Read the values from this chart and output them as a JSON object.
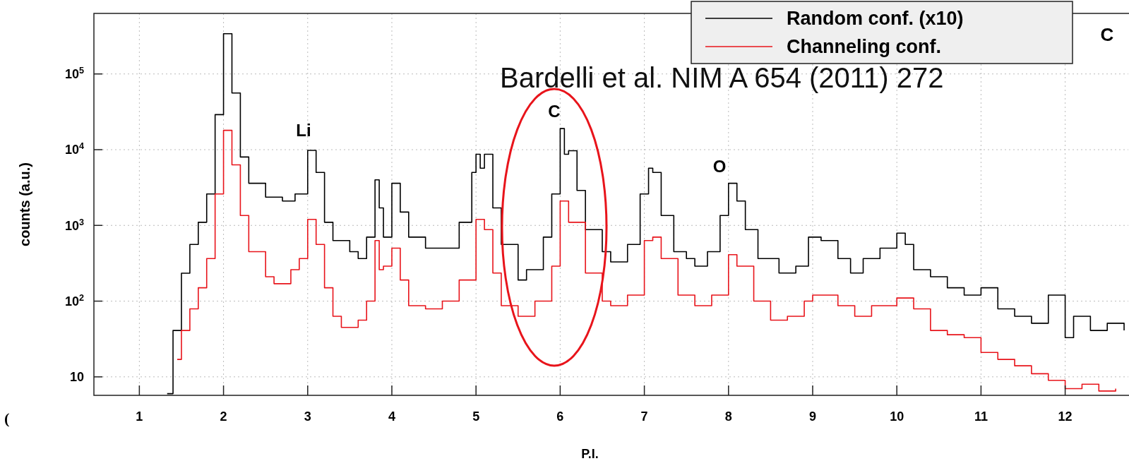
{
  "chart_data": {
    "type": "step",
    "xlabel": "P.I.",
    "ylabel": "counts (a.u.)",
    "log": "y",
    "grid": true,
    "legend": "top right",
    "line_style": "solid",
    "marker": "none",
    "xlim": [
      0.46,
      12.75
    ],
    "xticks": [
      1,
      2,
      3,
      4,
      5,
      6,
      7,
      8,
      9,
      10,
      11,
      12
    ],
    "ylim": [
      5.7,
      630000
    ],
    "yticks": [
      {
        "value": 10,
        "label": "10"
      },
      {
        "value": 100,
        "label": "10$^{2}$"
      },
      {
        "value": 1000,
        "label": "10$^{3}$"
      },
      {
        "value": 10000,
        "label": "10$^{4}$"
      },
      {
        "value": 100000,
        "label": "10$^{5}$"
      }
    ],
    "series": [
      {
        "name": "Random conf. (x10)",
        "color": "#000000",
        "x": [
          1.33,
          1.4,
          1.5,
          1.6,
          1.7,
          1.8,
          1.9,
          2.0,
          2.1,
          2.2,
          2.3,
          2.5,
          2.7,
          2.85,
          3.0,
          3.1,
          3.2,
          3.3,
          3.5,
          3.6,
          3.7,
          3.8,
          3.85,
          3.9,
          4.0,
          4.1,
          4.2,
          4.4,
          4.6,
          4.8,
          4.95,
          5.0,
          5.05,
          5.1,
          5.2,
          5.3,
          5.5,
          5.6,
          5.8,
          5.9,
          6.0,
          6.05,
          6.1,
          6.2,
          6.3,
          6.5,
          6.6,
          6.8,
          6.95,
          7.05,
          7.1,
          7.2,
          7.35,
          7.5,
          7.6,
          7.75,
          7.9,
          8.0,
          8.1,
          8.2,
          8.35,
          8.6,
          8.8,
          8.95,
          9.1,
          9.3,
          9.45,
          9.6,
          9.8,
          10.0,
          10.1,
          10.2,
          10.4,
          10.6,
          10.8,
          11.0,
          11.2,
          11.4,
          11.6,
          11.8,
          12.0,
          12.1,
          12.3,
          12.5,
          12.7
        ],
        "values": [
          6,
          41,
          234,
          560,
          1100,
          2600,
          29000,
          340000,
          56000,
          8000,
          3600,
          2360,
          2100,
          2600,
          9800,
          5000,
          1100,
          630,
          450,
          365,
          700,
          4000,
          1700,
          700,
          3600,
          1500,
          700,
          500,
          500,
          1100,
          5000,
          8700,
          5700,
          8700,
          1700,
          560,
          190,
          260,
          700,
          2600,
          19000,
          8700,
          9700,
          2900,
          880,
          450,
          330,
          560,
          2600,
          5700,
          5000,
          1350,
          450,
          365,
          290,
          450,
          1350,
          3600,
          2100,
          880,
          365,
          235,
          290,
          700,
          630,
          365,
          235,
          365,
          500,
          790,
          560,
          260,
          210,
          150,
          120,
          150,
          79,
          63,
          51,
          120,
          33,
          63,
          41,
          51,
          41
        ]
      },
      {
        "name": "Channeling conf.",
        "color": "#e8141b",
        "x": [
          1.45,
          1.5,
          1.6,
          1.7,
          1.8,
          1.9,
          2.0,
          2.1,
          2.2,
          2.3,
          2.5,
          2.6,
          2.8,
          2.9,
          3.0,
          3.1,
          3.2,
          3.3,
          3.4,
          3.6,
          3.7,
          3.8,
          3.85,
          3.9,
          4.0,
          4.1,
          4.2,
          4.4,
          4.6,
          4.8,
          5.0,
          5.1,
          5.2,
          5.3,
          5.5,
          5.7,
          5.9,
          6.0,
          6.1,
          6.3,
          6.5,
          6.6,
          6.8,
          7.0,
          7.1,
          7.2,
          7.4,
          7.6,
          7.8,
          8.0,
          8.1,
          8.3,
          8.5,
          8.7,
          8.9,
          9.0,
          9.3,
          9.5,
          9.7,
          10.0,
          10.2,
          10.4,
          10.6,
          10.8,
          11.0,
          11.2,
          11.4,
          11.6,
          11.8,
          12.0,
          12.2,
          12.4,
          12.6
        ],
        "values": [
          17,
          41,
          79,
          150,
          365,
          2600,
          18000,
          6300,
          1350,
          450,
          210,
          170,
          260,
          365,
          1200,
          560,
          150,
          63,
          45,
          56,
          100,
          630,
          260,
          290,
          500,
          190,
          87,
          79,
          100,
          190,
          1200,
          880,
          235,
          87,
          63,
          100,
          290,
          2100,
          1100,
          235,
          100,
          87,
          120,
          630,
          700,
          365,
          120,
          87,
          120,
          410,
          290,
          100,
          56,
          63,
          100,
          120,
          87,
          63,
          87,
          110,
          79,
          41,
          36,
          33,
          21,
          17,
          14,
          11,
          9,
          7,
          8,
          6.5,
          7
        ]
      }
    ],
    "annotations": [
      "Li",
      "C",
      "O",
      "Bardelli et al. NIM A 654 (2011) 272",
      "C",
      "("
    ]
  }
}
